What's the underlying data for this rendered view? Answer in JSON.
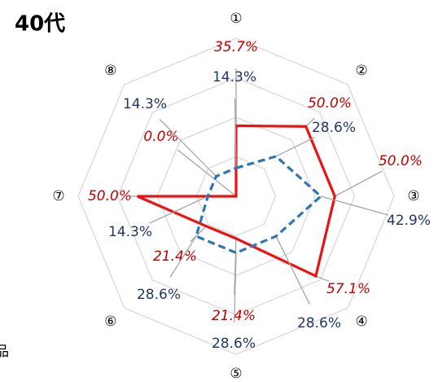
{
  "chart_data": {
    "type": "radar",
    "title": "40代",
    "annotation": "品",
    "categories": [
      "①",
      "②",
      "③",
      "④",
      "⑤",
      "⑥",
      "⑦",
      "⑧"
    ],
    "rlim": [
      0,
      80
    ],
    "rticks": [
      20,
      40,
      60,
      80
    ],
    "grid": true,
    "series": [
      {
        "color": "#ee1111",
        "style": "solid",
        "values": [
          35.7,
          50.0,
          50.0,
          57.1,
          21.4,
          21.4,
          50.0,
          0.0
        ],
        "value_labels": [
          "35.7%",
          "50.0%",
          "50.0%",
          "57.1%",
          "21.4%",
          "21.4%",
          "50.0%",
          "0.0%"
        ]
      },
      {
        "color": "#2e75b6",
        "style": "dashed",
        "values": [
          14.3,
          28.6,
          42.9,
          28.6,
          28.6,
          28.6,
          14.3,
          14.3
        ],
        "value_labels": [
          "14.3%",
          "28.6%",
          "42.9%",
          "28.6%",
          "28.6%",
          "28.6%",
          "14.3%",
          "14.3%"
        ]
      }
    ]
  }
}
